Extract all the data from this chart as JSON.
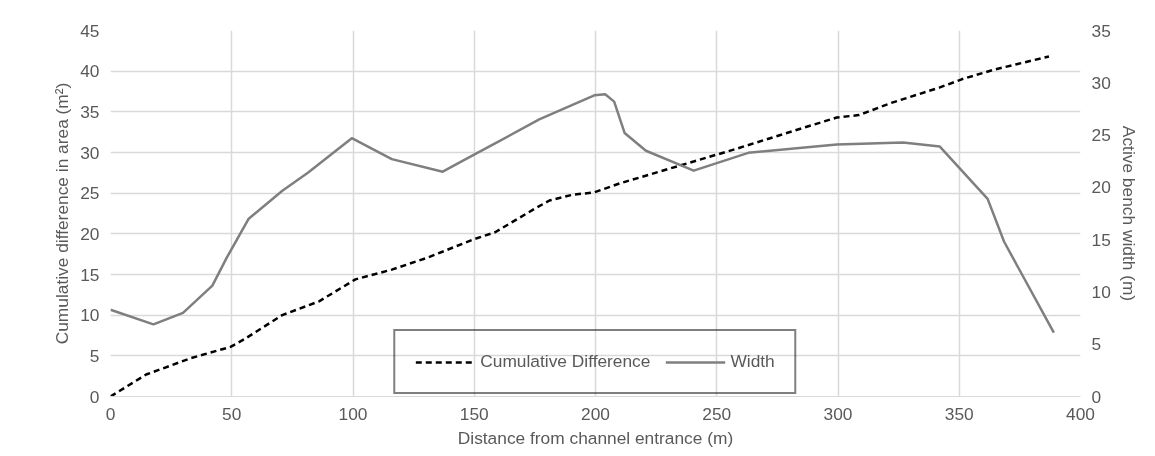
{
  "chart_data": {
    "type": "line",
    "xlabel": "Distance from channel entrance (m)",
    "ylabel": "Cumulative difference in area (m²)",
    "y2label": "Active bench width (m)",
    "xlim": [
      0,
      400
    ],
    "xticks": [
      0,
      50,
      100,
      150,
      200,
      250,
      300,
      350,
      400
    ],
    "ylim": [
      0,
      45
    ],
    "yticks": [
      0,
      5,
      10,
      15,
      20,
      25,
      30,
      35,
      40,
      45
    ],
    "y2lim": [
      0,
      35
    ],
    "y2ticks": [
      0,
      5,
      10,
      15,
      20,
      25,
      30,
      35
    ],
    "grid": true,
    "legend": "bottom",
    "series": [
      {
        "name": "Cumulative Difference",
        "color": "#000000",
        "line_style": "dashed",
        "x": [
          0,
          14.7,
          33,
          49.5,
          55.5,
          70.8,
          86,
          101,
          116,
          131,
          149.5,
          158.6,
          175,
          181,
          190.5,
          199.5,
          210,
          236,
          258.6,
          281,
          299.5,
          308.6,
          322,
          342,
          351,
          364.5,
          387
        ],
        "values": [
          0,
          2.7,
          4.7,
          6.1,
          7.1,
          10,
          11.7,
          14.4,
          15.6,
          17.1,
          19.3,
          20.2,
          23.1,
          24.1,
          24.8,
          25.1,
          26.2,
          28.5,
          30.5,
          32.6,
          34.3,
          34.6,
          36.1,
          38,
          39,
          40.2,
          41.8
        ]
      },
      {
        "name": "Width",
        "color": "#7f7f7f",
        "line_style": "solid",
        "axis": "y2",
        "x": [
          0,
          17.7,
          29.9,
          42,
          48,
          57,
          71,
          81.4,
          99.5,
          116,
          137,
          146.5,
          158.6,
          176.8,
          199.5,
          204,
          207.7,
          212,
          220.8,
          240.5,
          263,
          299.5,
          326.8,
          342,
          361.7,
          368.5,
          389
        ],
        "values": [
          8.3,
          6.9,
          8,
          10.6,
          13.3,
          17,
          19.7,
          21.4,
          24.7,
          22.7,
          21.5,
          22.7,
          24.2,
          26.5,
          28.8,
          28.9,
          28.2,
          25.2,
          23.5,
          21.6,
          23.3,
          24.1,
          24.3,
          23.9,
          18.9,
          14.8,
          6.1
        ]
      }
    ]
  }
}
